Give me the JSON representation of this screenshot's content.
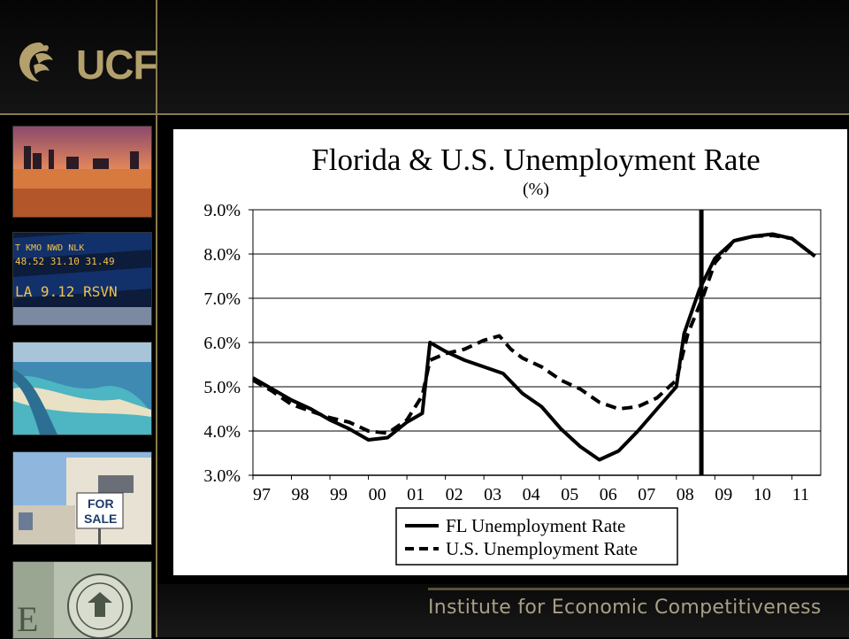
{
  "branding": {
    "logo_text": "UCF",
    "footer": "Institute for Economic Competitiveness"
  },
  "thumbnails": {
    "market_ticker_lines": [
      "T  KMO  NWD  NLK",
      "48.52  31.10  31.49",
      "LA 9.12  RSVN"
    ],
    "house_sign": [
      "FOR",
      "SALE"
    ]
  },
  "colors": {
    "gold": "#b3a06c",
    "chart_line": "#000000"
  },
  "chart_data": {
    "type": "line",
    "title": "Florida  & U.S. Unemployment Rate",
    "subtitle": "(%)",
    "xlabel": "",
    "ylabel": "",
    "x_tick_labels": [
      "97",
      "98",
      "99",
      "00",
      "01",
      "02",
      "03",
      "04",
      "05",
      "06",
      "07",
      "08",
      "09",
      "10",
      "11"
    ],
    "x_range": [
      1997.0,
      2011.75
    ],
    "y_tick_labels": [
      "3.0%",
      "4.0%",
      "5.0%",
      "6.0%",
      "7.0%",
      "8.0%",
      "9.0%"
    ],
    "ylim": [
      3.0,
      9.0
    ],
    "grid": "horizontal",
    "legend_position": "bottom-center",
    "vertical_marker_x": 2008.65,
    "series": [
      {
        "name": "FL Unemployment Rate",
        "style": "solid",
        "points": [
          [
            1997.0,
            5.2
          ],
          [
            1997.5,
            4.95
          ],
          [
            1998.0,
            4.7
          ],
          [
            1998.5,
            4.5
          ],
          [
            1999.0,
            4.25
          ],
          [
            1999.5,
            4.05
          ],
          [
            2000.0,
            3.8
          ],
          [
            2000.5,
            3.85
          ],
          [
            2001.0,
            4.2
          ],
          [
            2001.4,
            4.4
          ],
          [
            2001.6,
            6.0
          ],
          [
            2002.0,
            5.8
          ],
          [
            2002.5,
            5.6
          ],
          [
            2003.0,
            5.45
          ],
          [
            2003.5,
            5.3
          ],
          [
            2004.0,
            4.85
          ],
          [
            2004.5,
            4.55
          ],
          [
            2005.0,
            4.05
          ],
          [
            2005.5,
            3.65
          ],
          [
            2006.0,
            3.35
          ],
          [
            2006.5,
            3.55
          ],
          [
            2007.0,
            4.0
          ],
          [
            2007.5,
            4.5
          ],
          [
            2008.0,
            5.0
          ],
          [
            2008.2,
            6.2
          ],
          [
            2008.6,
            7.2
          ],
          [
            2009.0,
            7.9
          ],
          [
            2009.5,
            8.3
          ],
          [
            2010.0,
            8.4
          ],
          [
            2010.5,
            8.45
          ],
          [
            2011.0,
            8.35
          ],
          [
            2011.6,
            7.95
          ]
        ]
      },
      {
        "name": "U.S. Unemployment Rate",
        "style": "dashed",
        "points": [
          [
            1997.0,
            5.15
          ],
          [
            1997.5,
            4.9
          ],
          [
            1998.0,
            4.6
          ],
          [
            1998.5,
            4.45
          ],
          [
            1999.0,
            4.3
          ],
          [
            1999.5,
            4.2
          ],
          [
            2000.0,
            4.0
          ],
          [
            2000.5,
            3.95
          ],
          [
            2001.0,
            4.25
          ],
          [
            2001.4,
            4.8
          ],
          [
            2001.6,
            5.6
          ],
          [
            2002.0,
            5.75
          ],
          [
            2002.5,
            5.85
          ],
          [
            2003.0,
            6.05
          ],
          [
            2003.4,
            6.15
          ],
          [
            2003.7,
            5.85
          ],
          [
            2004.0,
            5.65
          ],
          [
            2004.5,
            5.45
          ],
          [
            2005.0,
            5.15
          ],
          [
            2005.5,
            4.95
          ],
          [
            2006.0,
            4.65
          ],
          [
            2006.5,
            4.5
          ],
          [
            2007.0,
            4.55
          ],
          [
            2007.5,
            4.75
          ],
          [
            2008.0,
            5.15
          ],
          [
            2008.3,
            6.2
          ],
          [
            2008.7,
            7.05
          ],
          [
            2009.0,
            7.8
          ],
          [
            2009.5,
            8.3
          ],
          [
            2010.0,
            8.4
          ],
          [
            2010.5,
            8.42
          ],
          [
            2011.0,
            8.35
          ],
          [
            2011.6,
            7.95
          ]
        ]
      }
    ]
  }
}
